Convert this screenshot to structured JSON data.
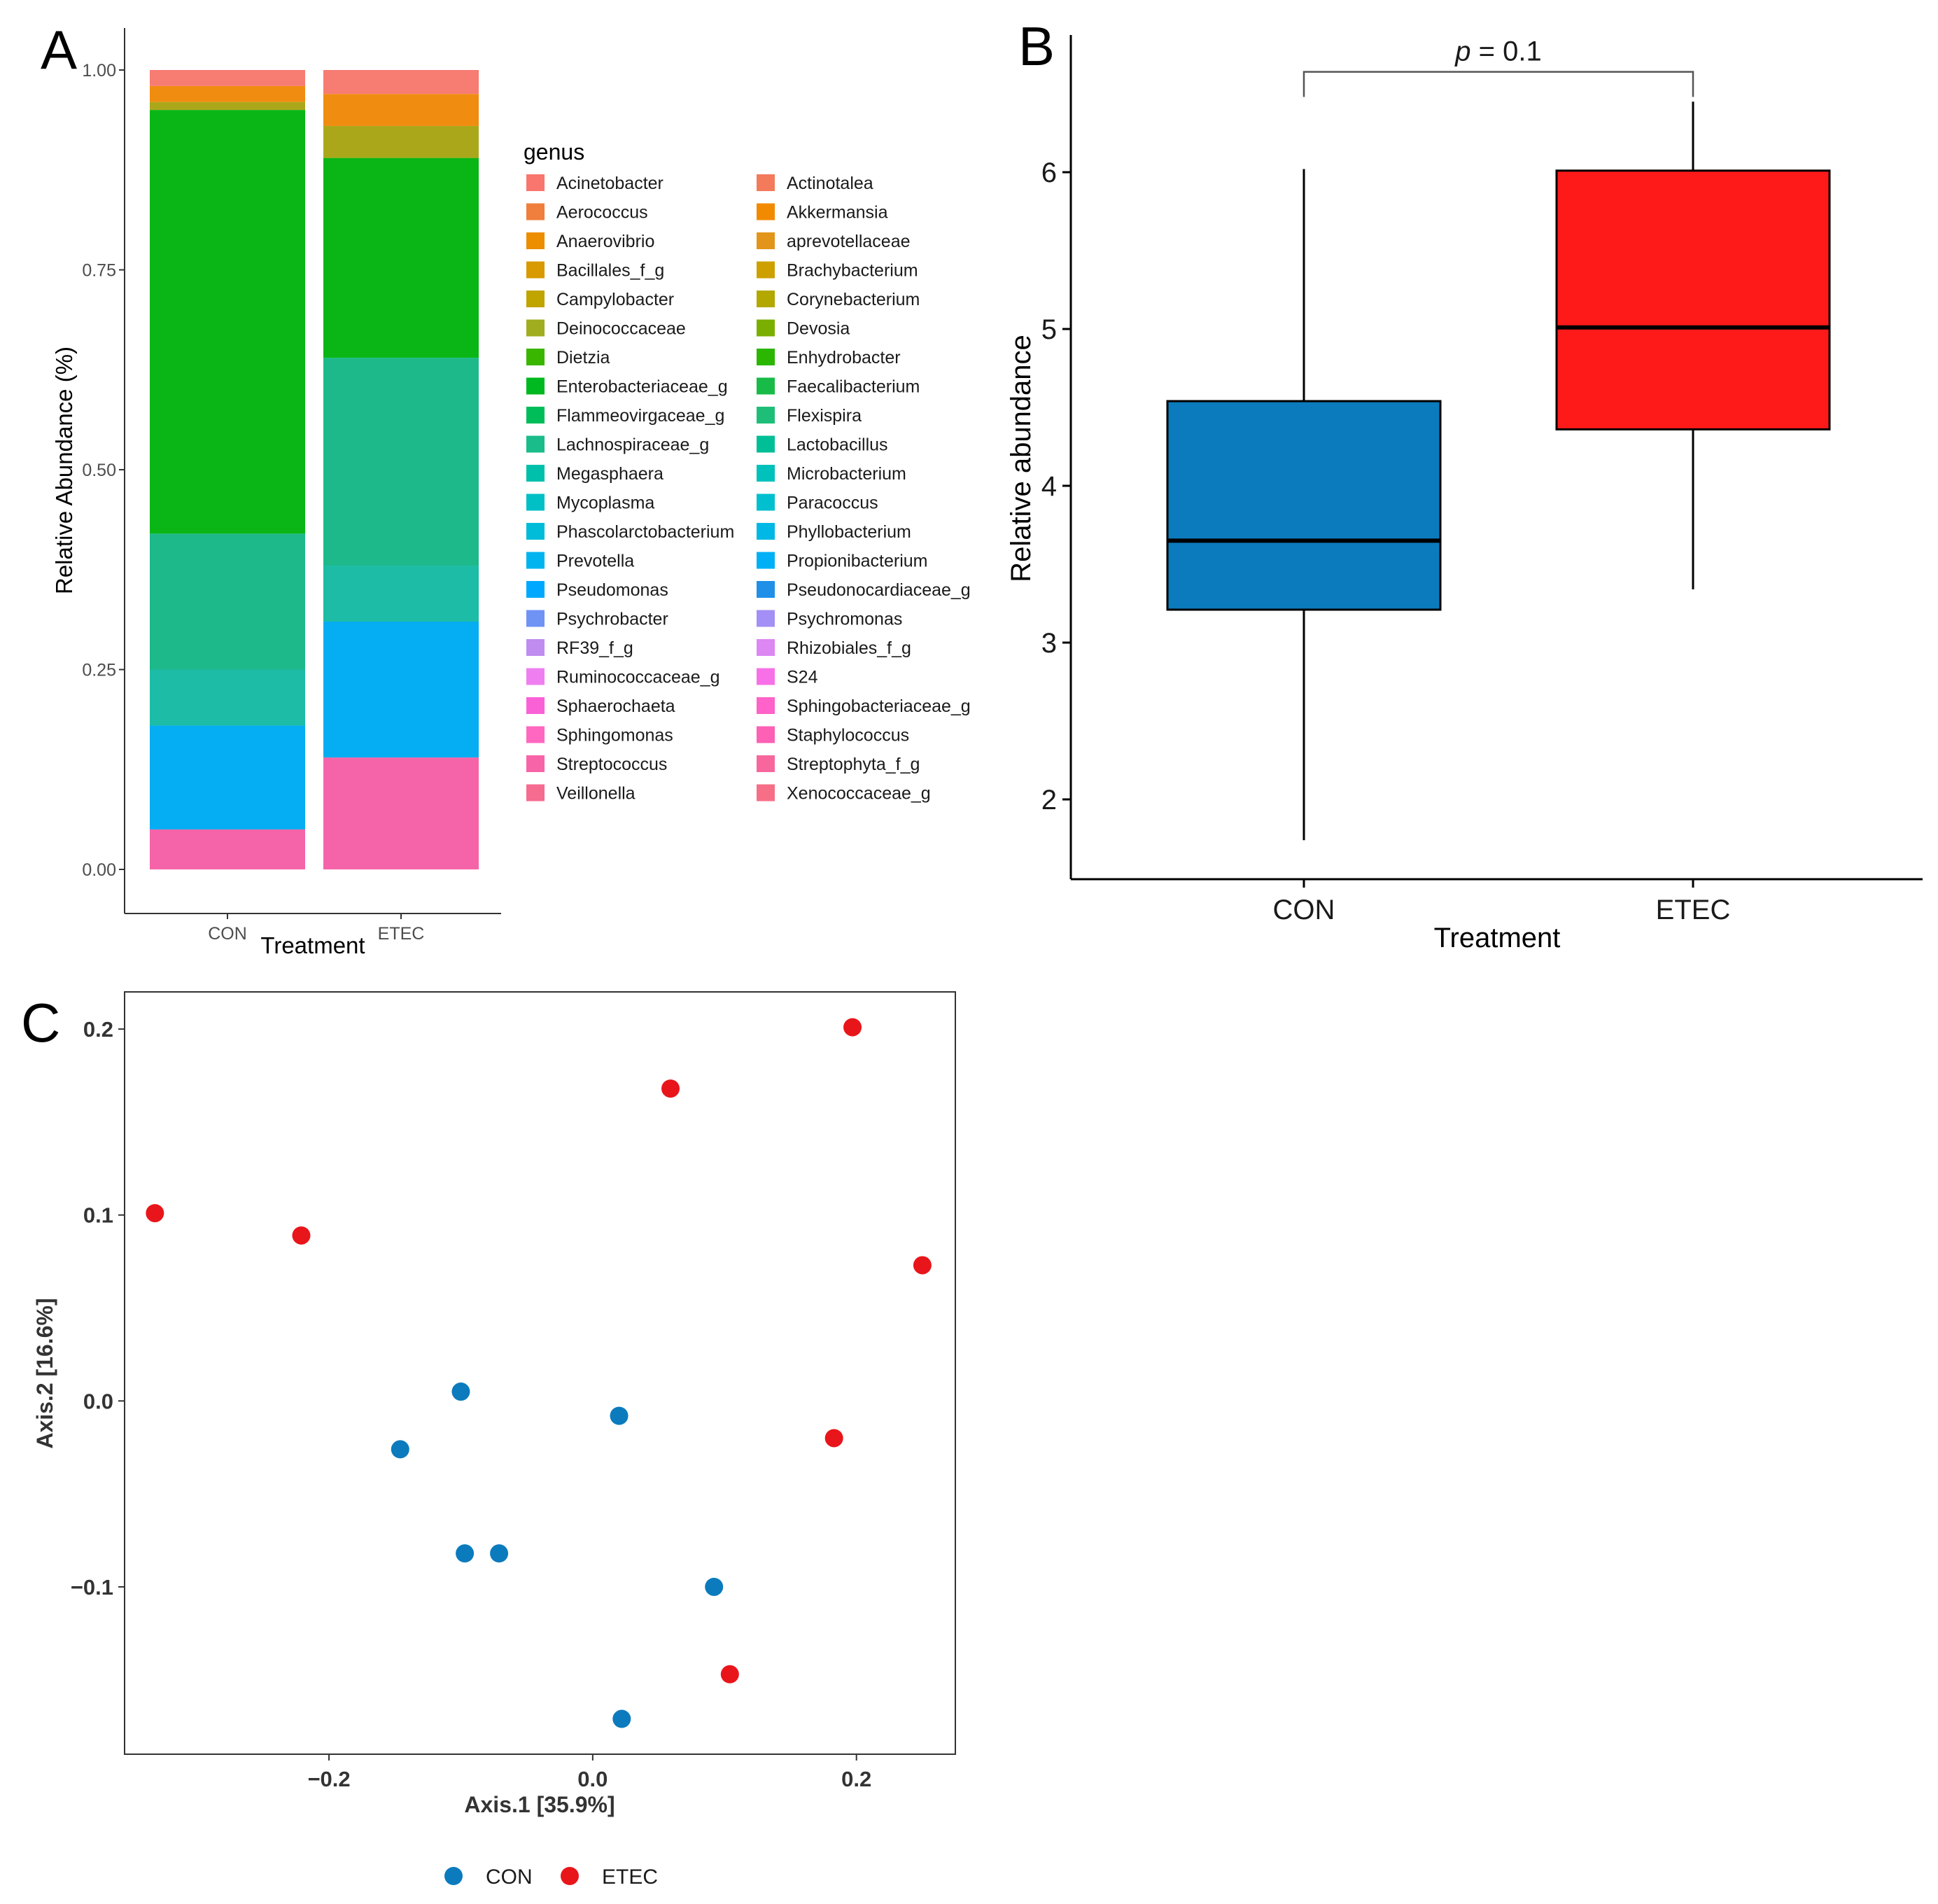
{
  "panels": {
    "a": "A",
    "b": "B",
    "c": "C"
  },
  "colors": {
    "con": "#0b7bbd",
    "etec": "#e8161b",
    "box_etec": "#ff1a1a"
  },
  "chart_data": [
    {
      "id": "A",
      "type": "bar",
      "stacked": true,
      "categories": [
        "CON",
        "ETEC"
      ],
      "xlabel": "Treatment",
      "ylabel": "Relative Abundance (%)",
      "ylim": [
        0,
        1
      ],
      "yticks": [
        "0.00",
        "0.25",
        "0.50",
        "0.75",
        "1.00"
      ],
      "legend_title": "genus",
      "legend": [
        {
          "name": "Acinetobacter",
          "color": "#f8766d"
        },
        {
          "name": "Actinotalea",
          "color": "#f47a5c"
        },
        {
          "name": "Aerococcus",
          "color": "#f07e3c"
        },
        {
          "name": "Akkermansia",
          "color": "#f28a00"
        },
        {
          "name": "Anaerovibrio",
          "color": "#ec8e00"
        },
        {
          "name": "aprevotellaceae",
          "color": "#e2951a"
        },
        {
          "name": "Bacillales_f_g",
          "color": "#d89a00"
        },
        {
          "name": "Brachybacterium",
          "color": "#cda000"
        },
        {
          "name": "Campylobacter",
          "color": "#c0a400"
        },
        {
          "name": "Corynebacterium",
          "color": "#b2a800"
        },
        {
          "name": "Deinococcaceae",
          "color": "#9fad1f"
        },
        {
          "name": "Devosia",
          "color": "#7aae00"
        },
        {
          "name": "Dietzia",
          "color": "#39b600"
        },
        {
          "name": "Enhydrobacter",
          "color": "#2bb600"
        },
        {
          "name": "Enterobacteriaceae_g",
          "color": "#00b81f"
        },
        {
          "name": "Faecalibacterium",
          "color": "#19bb48"
        },
        {
          "name": "Flammeovirgaceae_g",
          "color": "#00bc59"
        },
        {
          "name": "Flexispira",
          "color": "#1fbe78"
        },
        {
          "name": "Lachnospiraceae_g",
          "color": "#1abc8a"
        },
        {
          "name": "Lactobacillus",
          "color": "#00bf96"
        },
        {
          "name": "Megasphaera",
          "color": "#00c0ab"
        },
        {
          "name": "Microbacterium",
          "color": "#00c1bb"
        },
        {
          "name": "Mycoplasma",
          "color": "#00c0c6"
        },
        {
          "name": "Paracoccus",
          "color": "#00bfcf"
        },
        {
          "name": "Phascolarctobacterium",
          "color": "#00bcd8"
        },
        {
          "name": "Phyllobacterium",
          "color": "#00b8e5"
        },
        {
          "name": "Prevotella",
          "color": "#00b4ef"
        },
        {
          "name": "Propionibacterium",
          "color": "#00b0f6"
        },
        {
          "name": "Pseudomonas",
          "color": "#00a9ff"
        },
        {
          "name": "Pseudonocardiaceae_g",
          "color": "#1f8fe8"
        },
        {
          "name": "Psychrobacter",
          "color": "#6f93f5"
        },
        {
          "name": "Psychromonas",
          "color": "#a38ff5"
        },
        {
          "name": "RF39_f_g",
          "color": "#c08cf0"
        },
        {
          "name": "Rhizobiales_f_g",
          "color": "#dc87f2"
        },
        {
          "name": "Ruminococcaceae_g",
          "color": "#ef7ff0"
        },
        {
          "name": "S24",
          "color": "#f870e8"
        },
        {
          "name": "Sphaerochaeta",
          "color": "#fb61d7"
        },
        {
          "name": "Sphingobacteriaceae_g",
          "color": "#ff62c8"
        },
        {
          "name": "Sphingomonas",
          "color": "#ff67c0"
        },
        {
          "name": "Staphylococcus",
          "color": "#fd61b5"
        },
        {
          "name": "Streptococcus",
          "color": "#f864a8"
        },
        {
          "name": "Streptophyta_f_g",
          "color": "#f7679e"
        },
        {
          "name": "Veillonella",
          "color": "#f66b90"
        },
        {
          "name": "Xenococcaceae_g",
          "color": "#f66f86"
        }
      ],
      "series": [
        {
          "name": "pink (Sphingomonas–Xenococcaceae_g)",
          "color": "#f564a8",
          "values": [
            0.05,
            0.14
          ]
        },
        {
          "name": "blue (Prevotella–Pseudomonas)",
          "color": "#05adf2",
          "values": [
            0.13,
            0.17
          ]
        },
        {
          "name": "teal (Megasphaera–Phyllobacterium)",
          "color": "#1cbca6",
          "values": [
            0.07,
            0.07
          ]
        },
        {
          "name": "turquoise-green (Flexispira–Lactobacillus)",
          "color": "#1db98a",
          "values": [
            0.17,
            0.26
          ]
        },
        {
          "name": "green (Dietzia–Faecalibacterium)",
          "color": "#0ab616",
          "values": [
            0.53,
            0.25
          ]
        },
        {
          "name": "olive (Campylobacter–Devosia)",
          "color": "#aaa81a",
          "values": [
            0.01,
            0.04
          ]
        },
        {
          "name": "orange (Aerococcus–Brachybacterium)",
          "color": "#f08c10",
          "values": [
            0.02,
            0.04
          ]
        },
        {
          "name": "salmon (Acinetobacter, Actinotalea)",
          "color": "#f77c72",
          "values": [
            0.02,
            0.03
          ]
        }
      ]
    },
    {
      "id": "B",
      "type": "box",
      "categories": [
        "CON",
        "ETEC"
      ],
      "xlabel": "Treatment",
      "ylabel": "Relative abundance",
      "ylim": [
        1.5,
        7.0
      ],
      "yticks": [
        "2",
        "3",
        "4",
        "5",
        "6"
      ],
      "boxes": [
        {
          "name": "CON",
          "min": 1.74,
          "q1": 3.21,
          "median": 3.65,
          "q3": 4.54,
          "max": 6.02
        },
        {
          "name": "ETEC",
          "min": 3.34,
          "q1": 4.36,
          "median": 5.01,
          "q3": 6.01,
          "max": 6.45
        }
      ],
      "annotation": {
        "label_p": "p",
        "label_rest": " = 0.1",
        "bracket_y": 6.64,
        "tick_y": 6.48
      }
    },
    {
      "id": "C",
      "type": "scatter",
      "xlabel": "Axis.1   [35.9%]",
      "ylabel": "Axis.2   [16.6%]",
      "xlim": [
        -0.355,
        0.275
      ],
      "ylim": [
        -0.19,
        0.22
      ],
      "xticks": [
        "−0.2",
        "0.0",
        "0.2"
      ],
      "yticks": [
        "−0.1",
        "0.0",
        "0.1",
        "0.2"
      ],
      "legend": [
        "CON",
        "ETEC"
      ],
      "series": [
        {
          "name": "CON",
          "points": [
            [
              -0.1,
              0.005
            ],
            [
              -0.146,
              -0.026
            ],
            [
              -0.097,
              -0.082
            ],
            [
              -0.071,
              -0.082
            ],
            [
              0.02,
              -0.008
            ],
            [
              0.092,
              -0.1
            ],
            [
              0.022,
              -0.171
            ]
          ]
        },
        {
          "name": "ETEC",
          "points": [
            [
              -0.332,
              0.101
            ],
            [
              -0.221,
              0.089
            ],
            [
              0.059,
              0.168
            ],
            [
              0.197,
              0.201
            ],
            [
              0.25,
              0.073
            ],
            [
              0.183,
              -0.02
            ],
            [
              0.104,
              -0.147
            ]
          ]
        }
      ]
    }
  ]
}
